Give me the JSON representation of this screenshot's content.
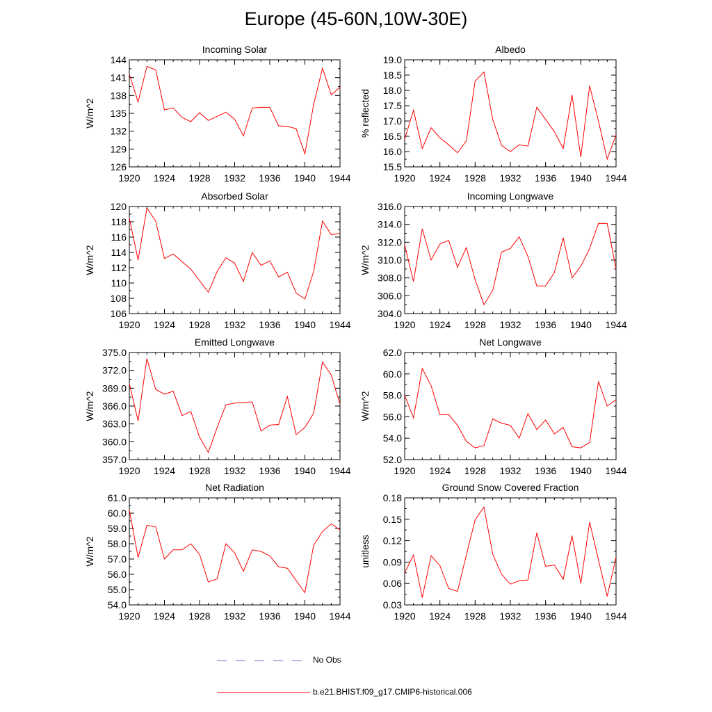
{
  "page": {
    "title": "Europe (45-60N,10W-30E)"
  },
  "legend": {
    "obs_label": "No Obs",
    "model_label": "b.e21.BHIST.f09_g17.CMIP6-historical.006",
    "obs_color": "#6b6bd6",
    "model_color": "#ff0000"
  },
  "chart_data": [
    {
      "type": "line",
      "title": "Incoming Solar",
      "ylabel": "W/m^2",
      "xlabel": "",
      "xlim": [
        1920,
        1944
      ],
      "ylim": [
        126,
        144
      ],
      "xticks": [
        1920,
        1924,
        1928,
        1932,
        1936,
        1940,
        1944
      ],
      "xtick_labels": [
        "1920",
        "1924",
        "1928",
        "1932",
        "1936",
        "1940",
        "1944"
      ],
      "yticks": [
        126,
        129,
        132,
        135,
        138,
        141,
        144
      ],
      "ytick_labels": [
        "126",
        "129",
        "132",
        "135",
        "138",
        "141",
        "144"
      ],
      "x": [
        1920,
        1921,
        1922,
        1923,
        1924,
        1925,
        1926,
        1927,
        1928,
        1929,
        1930,
        1931,
        1932,
        1933,
        1934,
        1935,
        1936,
        1937,
        1938,
        1939,
        1940,
        1941,
        1942,
        1943,
        1944
      ],
      "series": [
        {
          "name": "b.e21.BHIST.f09_g17.CMIP6-historical.006",
          "values": [
            141.6,
            136.9,
            142.9,
            142.3,
            135.6,
            135.9,
            134.3,
            133.6,
            135.1,
            133.8,
            134.5,
            135.2,
            134.0,
            131.2,
            135.9,
            136.0,
            136.0,
            132.9,
            132.8,
            132.4,
            128.2,
            136.5,
            142.6,
            138.1,
            139.4
          ]
        }
      ]
    },
    {
      "type": "line",
      "title": "Albedo",
      "ylabel": "% reflected",
      "xlabel": "",
      "xlim": [
        1920,
        1944
      ],
      "ylim": [
        15.5,
        19.0
      ],
      "xticks": [
        1920,
        1924,
        1928,
        1932,
        1936,
        1940,
        1944
      ],
      "xtick_labels": [
        "1920",
        "1924",
        "1928",
        "1932",
        "1936",
        "1940",
        "1944"
      ],
      "yticks": [
        15.5,
        16.0,
        16.5,
        17.0,
        17.5,
        18.0,
        18.5,
        19.0
      ],
      "ytick_labels": [
        "15.5",
        "16.0",
        "16.5",
        "17.0",
        "17.5",
        "18.0",
        "18.5",
        "19.0"
      ],
      "x": [
        1920,
        1921,
        1922,
        1923,
        1924,
        1925,
        1926,
        1927,
        1928,
        1929,
        1930,
        1931,
        1932,
        1933,
        1934,
        1935,
        1936,
        1937,
        1938,
        1939,
        1940,
        1941,
        1942,
        1943,
        1944
      ],
      "series": [
        {
          "name": "b.e21.BHIST.f09_g17.CMIP6-historical.006",
          "values": [
            16.4,
            17.35,
            16.1,
            16.78,
            16.45,
            16.22,
            15.96,
            16.35,
            18.3,
            18.6,
            17.05,
            16.2,
            16.0,
            16.22,
            16.18,
            17.45,
            17.05,
            16.65,
            16.1,
            17.85,
            15.82,
            18.15,
            17.0,
            15.75,
            16.55
          ]
        }
      ]
    },
    {
      "type": "line",
      "title": "Absorbed Solar",
      "ylabel": "W/m^2",
      "xlabel": "",
      "xlim": [
        1920,
        1944
      ],
      "ylim": [
        106,
        120
      ],
      "xticks": [
        1920,
        1924,
        1928,
        1932,
        1936,
        1940,
        1944
      ],
      "xtick_labels": [
        "1920",
        "1924",
        "1928",
        "1932",
        "1936",
        "1940",
        "1944"
      ],
      "yticks": [
        106,
        108,
        110,
        112,
        114,
        116,
        118,
        120
      ],
      "ytick_labels": [
        "106",
        "108",
        "110",
        "112",
        "114",
        "116",
        "118",
        "120"
      ],
      "x": [
        1920,
        1921,
        1922,
        1923,
        1924,
        1925,
        1926,
        1927,
        1928,
        1929,
        1930,
        1931,
        1932,
        1933,
        1934,
        1935,
        1936,
        1937,
        1938,
        1939,
        1940,
        1941,
        1942,
        1943,
        1944
      ],
      "series": [
        {
          "name": "b.e21.BHIST.f09_g17.CMIP6-historical.006",
          "values": [
            118.5,
            113.0,
            119.8,
            118.1,
            113.2,
            113.8,
            112.8,
            111.8,
            110.3,
            108.8,
            111.5,
            113.3,
            112.6,
            110.2,
            114.0,
            112.3,
            112.9,
            110.8,
            111.4,
            108.7,
            107.9,
            111.5,
            118.1,
            116.3,
            116.5
          ]
        }
      ]
    },
    {
      "type": "line",
      "title": "Incoming Longwave",
      "ylabel": "W/m^2",
      "xlabel": "",
      "xlim": [
        1920,
        1944
      ],
      "ylim": [
        304.0,
        316.0
      ],
      "xticks": [
        1920,
        1924,
        1928,
        1932,
        1936,
        1940,
        1944
      ],
      "xtick_labels": [
        "1920",
        "1924",
        "1928",
        "1932",
        "1936",
        "1940",
        "1944"
      ],
      "yticks": [
        304,
        306,
        308,
        310,
        312,
        314,
        316
      ],
      "ytick_labels": [
        "304.0",
        "306.0",
        "308.0",
        "310.0",
        "312.0",
        "314.0",
        "316.0"
      ],
      "x": [
        1920,
        1921,
        1922,
        1923,
        1924,
        1925,
        1926,
        1927,
        1928,
        1929,
        1930,
        1931,
        1932,
        1933,
        1934,
        1935,
        1936,
        1937,
        1938,
        1939,
        1940,
        1941,
        1942,
        1943,
        1944
      ],
      "series": [
        {
          "name": "b.e21.BHIST.f09_g17.CMIP6-historical.006",
          "values": [
            311.7,
            307.6,
            313.5,
            310.0,
            311.8,
            312.2,
            309.2,
            311.4,
            307.8,
            305.0,
            306.6,
            310.9,
            311.3,
            312.6,
            310.4,
            307.1,
            307.1,
            308.6,
            312.5,
            308.0,
            309.3,
            311.3,
            314.1,
            314.1,
            309.0
          ]
        }
      ]
    },
    {
      "type": "line",
      "title": "Emitted Longwave",
      "ylabel": "W/m^2",
      "xlabel": "",
      "xlim": [
        1920,
        1944
      ],
      "ylim": [
        357.0,
        375.0
      ],
      "xticks": [
        1920,
        1924,
        1928,
        1932,
        1936,
        1940,
        1944
      ],
      "xtick_labels": [
        "1920",
        "1924",
        "1928",
        "1932",
        "1936",
        "1940",
        "1944"
      ],
      "yticks": [
        357,
        360,
        363,
        366,
        369,
        372,
        375
      ],
      "ytick_labels": [
        "357.0",
        "360.0",
        "363.0",
        "366.0",
        "369.0",
        "372.0",
        "375.0"
      ],
      "x": [
        1920,
        1921,
        1922,
        1923,
        1924,
        1925,
        1926,
        1927,
        1928,
        1929,
        1930,
        1931,
        1932,
        1933,
        1934,
        1935,
        1936,
        1937,
        1938,
        1939,
        1940,
        1941,
        1942,
        1943,
        1944
      ],
      "series": [
        {
          "name": "b.e21.BHIST.f09_g17.CMIP6-historical.006",
          "values": [
            369.8,
            363.5,
            374.0,
            368.8,
            368.0,
            368.5,
            364.4,
            365.1,
            360.8,
            358.2,
            362.4,
            366.2,
            366.5,
            366.6,
            366.7,
            361.8,
            362.8,
            362.9,
            367.6,
            361.2,
            362.4,
            364.8,
            373.4,
            371.2,
            366.3
          ]
        }
      ]
    },
    {
      "type": "line",
      "title": "Net Longwave",
      "ylabel": "W/m^2",
      "xlabel": "",
      "xlim": [
        1920,
        1944
      ],
      "ylim": [
        52.0,
        62.0
      ],
      "xticks": [
        1920,
        1924,
        1928,
        1932,
        1936,
        1940,
        1944
      ],
      "xtick_labels": [
        "1920",
        "1924",
        "1928",
        "1932",
        "1936",
        "1940",
        "1944"
      ],
      "yticks": [
        52,
        54,
        56,
        58,
        60,
        62
      ],
      "ytick_labels": [
        "52.0",
        "54.0",
        "56.0",
        "58.0",
        "60.0",
        "62.0"
      ],
      "x": [
        1920,
        1921,
        1922,
        1923,
        1924,
        1925,
        1926,
        1927,
        1928,
        1929,
        1930,
        1931,
        1932,
        1933,
        1934,
        1935,
        1936,
        1937,
        1938,
        1939,
        1940,
        1941,
        1942,
        1943,
        1944
      ],
      "series": [
        {
          "name": "b.e21.BHIST.f09_g17.CMIP6-historical.006",
          "values": [
            58.0,
            55.9,
            60.5,
            58.9,
            56.2,
            56.2,
            55.2,
            53.7,
            53.1,
            53.3,
            55.8,
            55.4,
            55.2,
            54.0,
            56.3,
            54.8,
            55.7,
            54.4,
            55.0,
            53.2,
            53.1,
            53.6,
            59.3,
            57.0,
            57.6
          ]
        }
      ]
    },
    {
      "type": "line",
      "title": "Net Radiation",
      "ylabel": "W/m^2",
      "xlabel": "",
      "xlim": [
        1920,
        1944
      ],
      "ylim": [
        54.0,
        61.0
      ],
      "xticks": [
        1920,
        1924,
        1928,
        1932,
        1936,
        1940,
        1944
      ],
      "xtick_labels": [
        "1920",
        "1924",
        "1928",
        "1932",
        "1936",
        "1940",
        "1944"
      ],
      "yticks": [
        54,
        55,
        56,
        57,
        58,
        59,
        60,
        61
      ],
      "ytick_labels": [
        "54.0",
        "55.0",
        "56.0",
        "57.0",
        "58.0",
        "59.0",
        "60.0",
        "61.0"
      ],
      "x": [
        1920,
        1921,
        1922,
        1923,
        1924,
        1925,
        1926,
        1927,
        1928,
        1929,
        1930,
        1931,
        1932,
        1933,
        1934,
        1935,
        1936,
        1937,
        1938,
        1939,
        1940,
        1941,
        1942,
        1943,
        1944
      ],
      "series": [
        {
          "name": "b.e21.BHIST.f09_g17.CMIP6-historical.006",
          "values": [
            60.2,
            57.1,
            59.2,
            59.1,
            57.0,
            57.6,
            57.6,
            58.0,
            57.3,
            55.5,
            55.7,
            58.0,
            57.4,
            56.2,
            57.6,
            57.5,
            57.2,
            56.5,
            56.4,
            55.6,
            54.8,
            57.9,
            58.8,
            59.3,
            58.9
          ]
        }
      ]
    },
    {
      "type": "line",
      "title": "Ground Snow Covered Fraction",
      "ylabel": "unitless",
      "xlabel": "",
      "xlim": [
        1920,
        1944
      ],
      "ylim": [
        0.03,
        0.18
      ],
      "xticks": [
        1920,
        1924,
        1928,
        1932,
        1936,
        1940,
        1944
      ],
      "xtick_labels": [
        "1920",
        "1924",
        "1928",
        "1932",
        "1936",
        "1940",
        "1944"
      ],
      "yticks": [
        0.03,
        0.06,
        0.09,
        0.12,
        0.15,
        0.18
      ],
      "ytick_labels": [
        "0.03",
        "0.06",
        "0.09",
        "0.12",
        "0.15",
        "0.18"
      ],
      "x": [
        1920,
        1921,
        1922,
        1923,
        1924,
        1925,
        1926,
        1927,
        1928,
        1929,
        1930,
        1931,
        1932,
        1933,
        1934,
        1935,
        1936,
        1937,
        1938,
        1939,
        1940,
        1941,
        1942,
        1943,
        1944
      ],
      "series": [
        {
          "name": "b.e21.BHIST.f09_g17.CMIP6-historical.006",
          "values": [
            0.075,
            0.1,
            0.04,
            0.099,
            0.085,
            0.053,
            0.049,
            0.1,
            0.149,
            0.167,
            0.101,
            0.073,
            0.059,
            0.064,
            0.065,
            0.131,
            0.084,
            0.086,
            0.066,
            0.127,
            0.06,
            0.146,
            0.093,
            0.042,
            0.097
          ]
        }
      ]
    }
  ]
}
